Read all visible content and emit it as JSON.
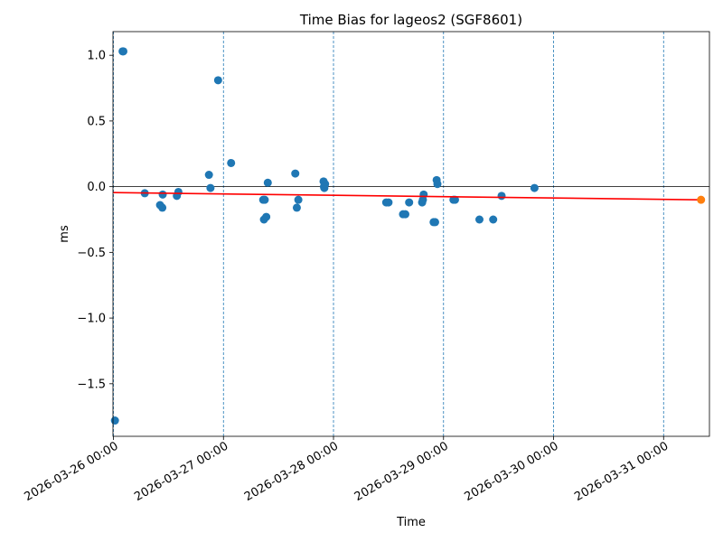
{
  "chart_data": {
    "type": "scatter",
    "title": "Time Bias for lageos2 (SGF8601)",
    "xlabel": "Time",
    "ylabel": "ms",
    "x_axis_type": "datetime",
    "xlim": [
      "2026-03-25T23:54",
      "2026-03-31T10:00"
    ],
    "ylim": [
      -1.9,
      1.18
    ],
    "yticks": [
      -1.5,
      -1.0,
      -0.5,
      0.0,
      0.5,
      1.0
    ],
    "ytick_labels": [
      "−1.5",
      "−1.0",
      "−0.5",
      "0.0",
      "0.5",
      "1.0"
    ],
    "xticks": [
      "2026-03-26T00:00",
      "2026-03-27T00:00",
      "2026-03-28T00:00",
      "2026-03-29T00:00",
      "2026-03-30T00:00",
      "2026-03-31T00:00"
    ],
    "xtick_labels": [
      "2026-03-26 00:00",
      "2026-03-27 00:00",
      "2026-03-28 00:00",
      "2026-03-29 00:00",
      "2026-03-30 00:00",
      "2026-03-31 00:00"
    ],
    "vertical_gridlines": "dashed, at each x tick",
    "horizontal_reference_line": 0.0,
    "colors": {
      "points": "#1f77b4",
      "trend": "#ff0000",
      "prediction": "#ff7f0e",
      "gridlines": "#1f77b4"
    },
    "series": [
      {
        "kind": "points",
        "points": [
          {
            "x": "2026-03-26T00:20",
            "y": -1.78
          },
          {
            "x": "2026-03-26T02:00",
            "y": 1.03
          },
          {
            "x": "2026-03-26T02:10",
            "y": 1.03
          },
          {
            "x": "2026-03-26T06:50",
            "y": -0.05
          },
          {
            "x": "2026-03-26T10:10",
            "y": -0.14
          },
          {
            "x": "2026-03-26T10:40",
            "y": -0.16
          },
          {
            "x": "2026-03-26T10:45",
            "y": -0.06
          },
          {
            "x": "2026-03-26T13:50",
            "y": -0.07
          },
          {
            "x": "2026-03-26T14:10",
            "y": -0.04
          },
          {
            "x": "2026-03-26T20:50",
            "y": 0.09
          },
          {
            "x": "2026-03-26T21:10",
            "y": -0.01
          },
          {
            "x": "2026-03-26T22:50",
            "y": 0.81
          },
          {
            "x": "2026-03-27T01:40",
            "y": 0.18
          },
          {
            "x": "2026-03-27T08:40",
            "y": -0.1
          },
          {
            "x": "2026-03-27T08:50",
            "y": -0.25
          },
          {
            "x": "2026-03-27T09:00",
            "y": -0.1
          },
          {
            "x": "2026-03-27T09:20",
            "y": -0.23
          },
          {
            "x": "2026-03-27T09:40",
            "y": 0.03
          },
          {
            "x": "2026-03-27T15:40",
            "y": 0.1
          },
          {
            "x": "2026-03-27T16:00",
            "y": -0.16
          },
          {
            "x": "2026-03-27T16:20",
            "y": -0.1
          },
          {
            "x": "2026-03-27T21:50",
            "y": 0.04
          },
          {
            "x": "2026-03-27T21:55",
            "y": 0.0
          },
          {
            "x": "2026-03-27T22:00",
            "y": -0.01
          },
          {
            "x": "2026-03-27T22:10",
            "y": 0.02
          },
          {
            "x": "2026-03-28T11:30",
            "y": -0.12
          },
          {
            "x": "2026-03-28T12:00",
            "y": -0.12
          },
          {
            "x": "2026-03-28T15:10",
            "y": -0.21
          },
          {
            "x": "2026-03-28T15:40",
            "y": -0.21
          },
          {
            "x": "2026-03-28T16:30",
            "y": -0.12
          },
          {
            "x": "2026-03-28T19:20",
            "y": -0.12
          },
          {
            "x": "2026-03-28T19:30",
            "y": -0.1
          },
          {
            "x": "2026-03-28T19:40",
            "y": -0.06
          },
          {
            "x": "2026-03-28T21:50",
            "y": -0.27
          },
          {
            "x": "2026-03-28T22:10",
            "y": -0.27
          },
          {
            "x": "2026-03-28T22:30",
            "y": 0.05
          },
          {
            "x": "2026-03-28T22:40",
            "y": 0.02
          },
          {
            "x": "2026-03-29T02:10",
            "y": -0.1
          },
          {
            "x": "2026-03-29T02:30",
            "y": -0.1
          },
          {
            "x": "2026-03-29T07:50",
            "y": -0.25
          },
          {
            "x": "2026-03-29T10:50",
            "y": -0.25
          },
          {
            "x": "2026-03-29T12:40",
            "y": -0.07
          },
          {
            "x": "2026-03-29T19:50",
            "y": -0.01
          }
        ]
      },
      {
        "kind": "trend-line",
        "points": [
          {
            "x": "2026-03-26T00:00",
            "y": -0.045
          },
          {
            "x": "2026-03-31T08:10",
            "y": -0.1
          }
        ]
      },
      {
        "kind": "prediction-point",
        "points": [
          {
            "x": "2026-03-31T08:10",
            "y": -0.1
          }
        ]
      }
    ]
  }
}
